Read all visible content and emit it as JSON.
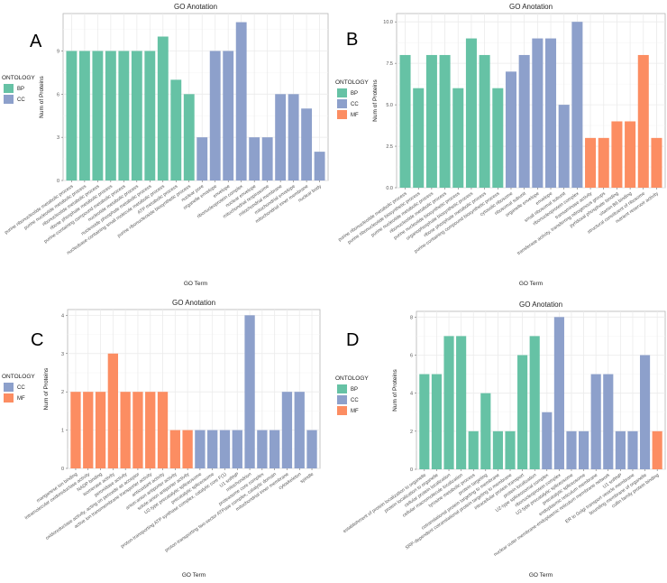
{
  "colors": {
    "BP": "#66c2a5",
    "CC": "#8da0cb",
    "MF": "#fc8d62"
  },
  "chart_data": [
    {
      "type": "bar",
      "panel_label": "A",
      "title": "GO Anotation",
      "xlabel": "GO Term",
      "ylabel": "Num of Proteins",
      "legend_title": "ONTOLOGY",
      "legend": [
        "BP",
        "CC"
      ],
      "legend_placement": "left",
      "ylim": [
        0,
        11.6
      ],
      "yticks": [
        0,
        3,
        6,
        9
      ],
      "ytick_labels": [
        "0",
        "3",
        "6",
        "9"
      ],
      "grid": true,
      "categories": [
        "purine ribonucleotide metabolic process",
        "purine nucleotide metabolic process",
        "ribonucleotide metabolic process",
        "ribose phosphate metabolic process",
        "purine-containing compound metabolic process",
        "nucleotide metabolic process",
        "nucleoside phosphate metabolic process",
        "nucleobase-containing small molecule metabolic process",
        "ATP metabolic process",
        "purine ribonucleoside biosynthetic process",
        "nuclear pore",
        "organelle envelope",
        "envelope",
        "ribonucleoprotein complex",
        "nuclear envelope",
        "mitochondrial respirasome",
        "mitochondrial membrane",
        "mitochondrial envelope",
        "mitochondrial inner membrane",
        "nuclear body"
      ],
      "ontology": [
        "BP",
        "BP",
        "BP",
        "BP",
        "BP",
        "BP",
        "BP",
        "BP",
        "BP",
        "BP",
        "CC",
        "CC",
        "CC",
        "CC",
        "CC",
        "CC",
        "CC",
        "CC",
        "CC",
        "CC"
      ],
      "values": [
        9,
        9,
        9,
        9,
        9,
        9,
        9,
        10,
        7,
        6,
        3,
        9,
        9,
        11,
        3,
        3,
        6,
        6,
        5,
        2
      ]
    },
    {
      "type": "bar",
      "panel_label": "B",
      "title": "GO Anotation",
      "xlabel": "GO Term",
      "ylabel": "Num of Proteins",
      "legend_title": "ONTOLOGY",
      "legend": [
        "BP",
        "CC",
        "MF"
      ],
      "legend_placement": "left",
      "ylim": [
        0,
        10.5
      ],
      "yticks": [
        0,
        2.5,
        5,
        7.5,
        10
      ],
      "ytick_labels": [
        "0.0",
        "2.5",
        "5.0",
        "7.5",
        "10.0"
      ],
      "grid": true,
      "categories": [
        "purine ribonucleotide metabolic process",
        "purine ribonucleotide biosynthetic process",
        "purine nucleotide metabolic process",
        "ribonucleotide metabolic process",
        "purine nucleotide biosynthetic process",
        "organophosphate biosynthetic process",
        "ribose phosphate metabolic process",
        "purine-containing compound biosynthetic process",
        "cytosolic ribosome",
        "ribosomal subunit",
        "organelle envelope",
        "envelope",
        "small ribosomal subunit",
        "ribonucleoprotein complex",
        "transaminase activity",
        "transferase activity, transferring nitrogenous groups",
        "pyridoxal phosphate binding",
        "vitamin B6 binding",
        "structural constituent of ribosome",
        "nutrient reservoir activity"
      ],
      "ontology": [
        "BP",
        "BP",
        "BP",
        "BP",
        "BP",
        "BP",
        "BP",
        "BP",
        "CC",
        "CC",
        "CC",
        "CC",
        "CC",
        "CC",
        "MF",
        "MF",
        "MF",
        "MF",
        "MF",
        "MF"
      ],
      "values": [
        8,
        6,
        8,
        8,
        6,
        9,
        8,
        6,
        7,
        8,
        9,
        9,
        5,
        10,
        3,
        3,
        4,
        4,
        8,
        3
      ]
    },
    {
      "type": "bar",
      "panel_label": "C",
      "title": "GO Anotation",
      "xlabel": "GO Term",
      "ylabel": "Num of Proteins",
      "legend_title": "ONTOLOGY",
      "legend": [
        "CC",
        "MF"
      ],
      "legend_placement": "left",
      "ylim": [
        0,
        4.15
      ],
      "yticks": [
        0,
        1,
        2,
        3,
        4
      ],
      "ytick_labels": [
        "0",
        "1",
        "2",
        "3",
        "4"
      ],
      "grid": true,
      "categories": [
        "manganese ion binding",
        "intramolecular oxidoreductase activity",
        "NADP binding",
        "isomerase activity",
        "peroxidase activity",
        "oxidoreductase activity, acting on peroxide as acceptor",
        "active ion transmembrane transporter activity",
        "antioxidant activity",
        "anion:anion antiporter activity",
        "solute:anion antiporter activity",
        "U2-type precatalytic spliceosome",
        "precatalytic spliceosome",
        "proton-transporting ATP synthase complex, catalytic core F(1)",
        "U1 snRNP",
        "mitochondrion",
        "proteasome core complex",
        "proton-transporting two-sector ATPase complex, catalytic domain",
        "mitochondrial inner membrane",
        "cytoskeleton",
        "spindle"
      ],
      "ontology": [
        "MF",
        "MF",
        "MF",
        "MF",
        "MF",
        "MF",
        "MF",
        "MF",
        "MF",
        "MF",
        "CC",
        "CC",
        "CC",
        "CC",
        "CC",
        "CC",
        "CC",
        "CC",
        "CC",
        "CC"
      ],
      "values": [
        2,
        2,
        2,
        3,
        2,
        2,
        2,
        2,
        1,
        1,
        1,
        1,
        1,
        1,
        4,
        1,
        1,
        2,
        2,
        1
      ]
    },
    {
      "type": "bar",
      "panel_label": "D",
      "title": "GO Anotation",
      "xlabel": "GO Term",
      "ylabel": "Num of Proteins",
      "legend_title": "ONTOLOGY",
      "legend": [
        "BP",
        "CC",
        "MF"
      ],
      "legend_placement": "left",
      "ylim": [
        0,
        8.3
      ],
      "yticks": [
        0,
        2,
        4,
        6,
        8
      ],
      "ytick_labels": [
        "0",
        "2",
        "4",
        "6",
        "8"
      ],
      "grid": true,
      "categories": [
        "establishment of protein localization to organelle",
        "protein localization to organelle",
        "cellular protein localization",
        "cellular macromolecule localization",
        "tyrosine metabolic process",
        "protein targeting",
        "cotranslational protein targeting to membrane",
        "SRP-dependent cotranslational protein targeting to membrane",
        "intracellular protein transport",
        "protein localization",
        "U2-type spliceosomal complex",
        "ribonucleoprotein complex",
        "U2-type precatalytic spliceosome",
        "precatalytic spliceosome",
        "endoplasmic reticulum membrane",
        "nuclear outer membrane-endoplasmic reticulum membrane network",
        "U1 snRNP",
        "ER to Golgi transport vesicle membrane",
        "bounding membrane of organelle",
        "cullin family protein binding"
      ],
      "ontology": [
        "BP",
        "BP",
        "BP",
        "BP",
        "BP",
        "BP",
        "BP",
        "BP",
        "BP",
        "BP",
        "CC",
        "CC",
        "CC",
        "CC",
        "CC",
        "CC",
        "CC",
        "CC",
        "CC",
        "MF"
      ],
      "values": [
        5,
        5,
        7,
        7,
        2,
        4,
        2,
        2,
        6,
        7,
        3,
        8,
        2,
        2,
        5,
        5,
        2,
        2,
        6,
        2
      ]
    }
  ]
}
